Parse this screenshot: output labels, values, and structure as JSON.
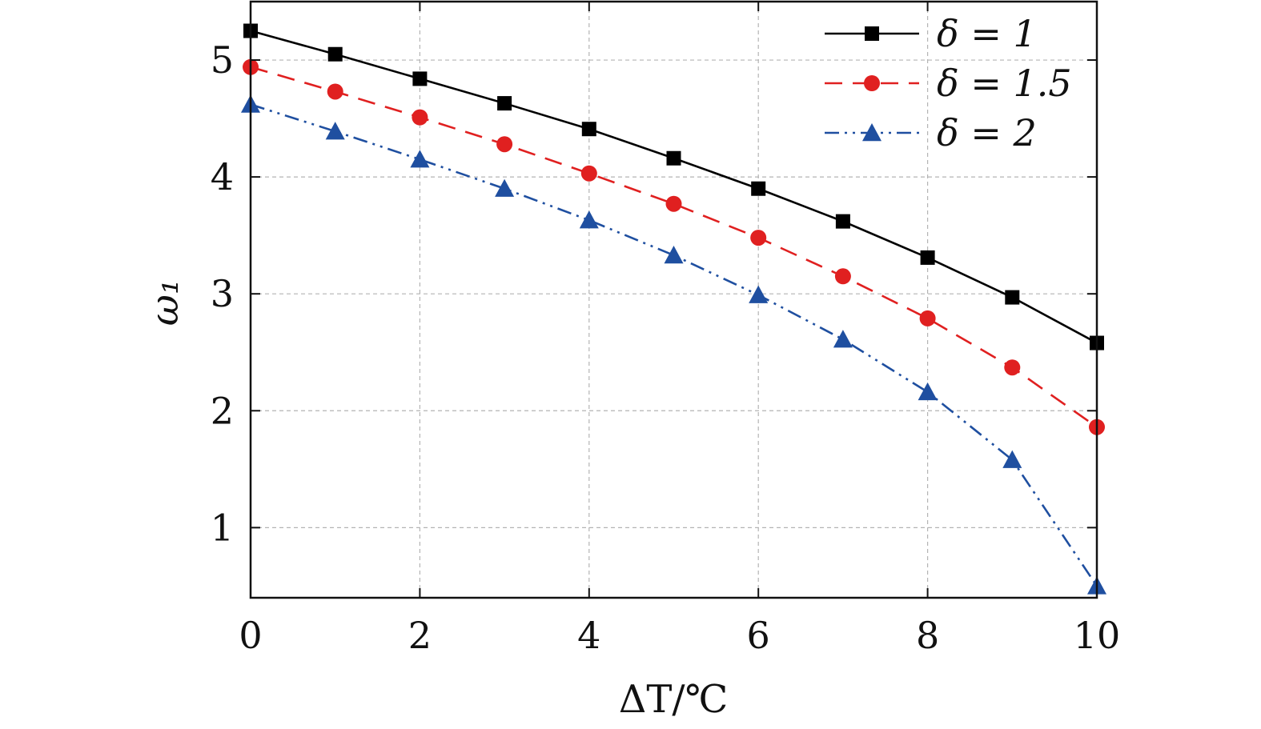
{
  "chart_data": {
    "type": "line",
    "title": "",
    "xlabel": "ΔT/℃",
    "ylabel": "ω₁",
    "xlim": [
      0,
      10
    ],
    "ylim": [
      0.4,
      5.5
    ],
    "xticks": [
      0,
      2,
      4,
      6,
      8,
      10
    ],
    "yticks": [
      1,
      2,
      3,
      4,
      5
    ],
    "xtick_labels": [
      "0",
      "2",
      "4",
      "6",
      "8",
      "10"
    ],
    "ytick_labels": [
      "1",
      "2",
      "3",
      "4",
      "5"
    ],
    "grid": true,
    "legend_position": "top-right",
    "x": [
      0,
      1,
      2,
      3,
      4,
      5,
      6,
      7,
      8,
      9,
      10
    ],
    "series": [
      {
        "name": "δ = 1",
        "color": "#000000",
        "marker": "square",
        "dash": "solid",
        "values": [
          5.25,
          5.05,
          4.84,
          4.63,
          4.41,
          4.16,
          3.9,
          3.62,
          3.31,
          2.97,
          2.58
        ]
      },
      {
        "name": "δ = 1.5",
        "color": "#e02020",
        "marker": "circle",
        "dash": "dashed",
        "values": [
          4.94,
          4.73,
          4.51,
          4.28,
          4.03,
          3.77,
          3.48,
          3.15,
          2.79,
          2.37,
          1.86
        ]
      },
      {
        "name": "δ = 2",
        "color": "#1f4fa0",
        "marker": "triangle",
        "dash": "dashdot",
        "values": [
          4.62,
          4.39,
          4.15,
          3.9,
          3.63,
          3.33,
          2.99,
          2.61,
          2.16,
          1.58,
          0.5
        ]
      }
    ]
  }
}
